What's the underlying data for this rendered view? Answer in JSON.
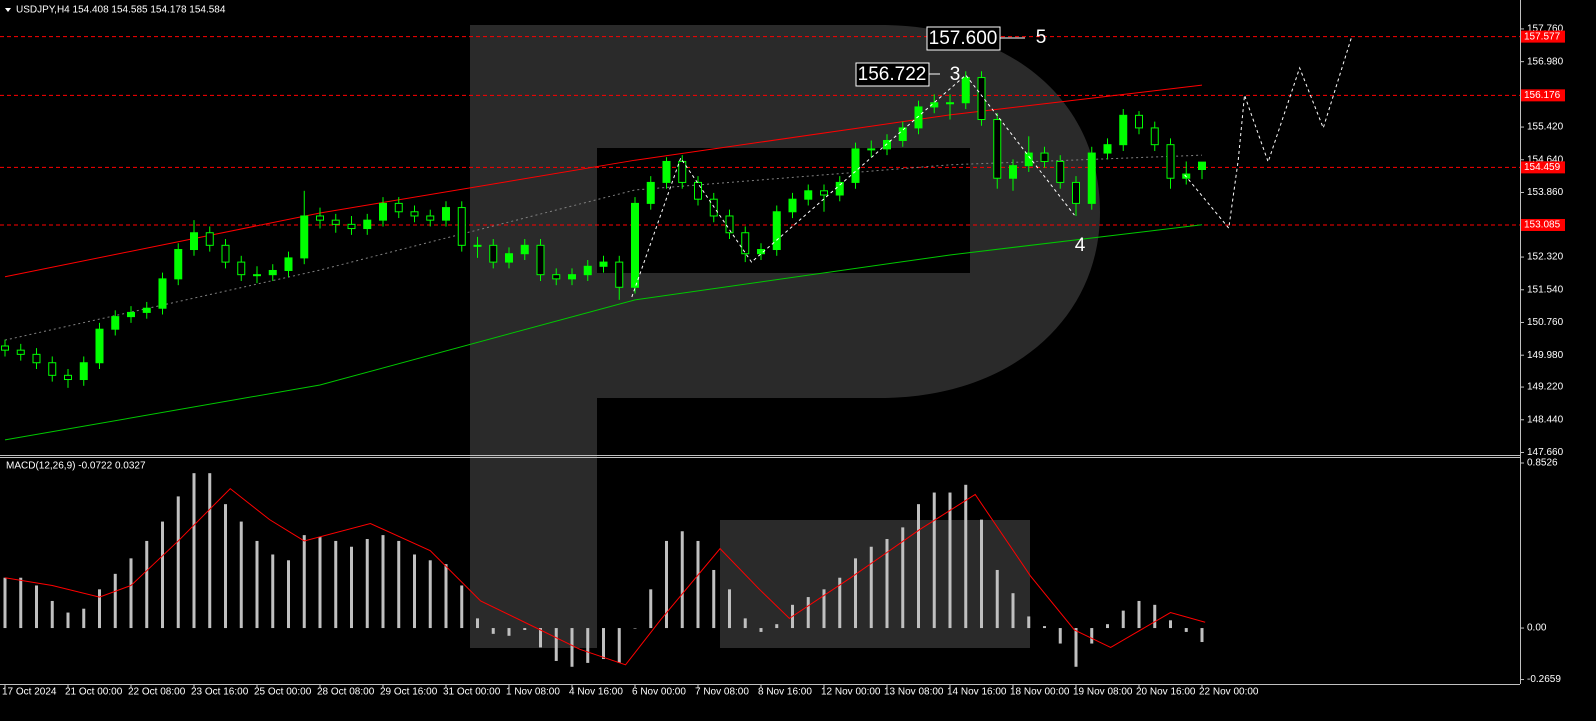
{
  "chart_data": {
    "type": "candlestick",
    "title": "USDJPY,H4  154.408 154.585 154.178 154.584",
    "categories": [
      "17 Oct 2024",
      null,
      null,
      null,
      "21 Oct 00:00",
      null,
      null,
      null,
      "22 Oct 08:00",
      null,
      null,
      null,
      "23 Oct 16:00",
      null,
      null,
      null,
      "25 Oct 00:00",
      null,
      null,
      null,
      "28 Oct 08:00",
      null,
      null,
      null,
      "29 Oct 16:00",
      null,
      null,
      null,
      "31 Oct 00:00",
      null,
      null,
      null,
      "1 Nov 08:00",
      null,
      null,
      null,
      "4 Nov 16:00",
      null,
      null,
      null,
      "6 Nov 00:00",
      null,
      null,
      null,
      "7 Nov 08:00",
      null,
      null,
      null,
      "8 Nov 16:00",
      null,
      null,
      null,
      "12 Nov 00:00",
      null,
      null,
      null,
      "13 Nov 08:00",
      null,
      null,
      null,
      "14 Nov 16:00",
      null,
      null,
      null,
      "18 Nov 00:00",
      null,
      null,
      null,
      "19 Nov 08:00",
      null,
      null,
      null,
      "20 Nov 16:00",
      null,
      null,
      null,
      "22 Nov 00:00"
    ],
    "candles": [
      [
        150.2,
        150.35,
        149.95,
        150.1
      ],
      [
        150.1,
        150.25,
        149.85,
        150.0
      ],
      [
        150.0,
        150.15,
        149.65,
        149.8
      ],
      [
        149.8,
        149.95,
        149.35,
        149.5
      ],
      [
        149.5,
        149.65,
        149.2,
        149.4
      ],
      [
        149.4,
        149.95,
        149.25,
        149.8
      ],
      [
        149.8,
        150.75,
        149.65,
        150.6
      ],
      [
        150.6,
        151.05,
        150.45,
        150.9
      ],
      [
        150.9,
        151.15,
        150.75,
        151.0
      ],
      [
        151.0,
        151.25,
        150.85,
        151.1
      ],
      [
        151.1,
        151.95,
        150.95,
        151.8
      ],
      [
        151.8,
        152.65,
        151.65,
        152.5
      ],
      [
        152.5,
        153.2,
        152.35,
        152.9
      ],
      [
        152.9,
        153.05,
        152.45,
        152.6
      ],
      [
        152.6,
        152.75,
        152.05,
        152.2
      ],
      [
        152.2,
        152.35,
        151.75,
        151.9
      ],
      [
        151.9,
        152.1,
        151.7,
        151.9
      ],
      [
        151.9,
        152.15,
        151.75,
        152.0
      ],
      [
        152.0,
        152.45,
        151.85,
        152.3
      ],
      [
        152.3,
        153.9,
        152.15,
        153.3
      ],
      [
        153.3,
        153.5,
        153.0,
        153.2
      ],
      [
        153.2,
        153.35,
        152.9,
        153.1
      ],
      [
        153.1,
        153.3,
        152.85,
        153.0
      ],
      [
        153.0,
        153.35,
        152.85,
        153.2
      ],
      [
        153.2,
        153.75,
        153.05,
        153.6
      ],
      [
        153.6,
        153.75,
        153.25,
        153.4
      ],
      [
        153.4,
        153.55,
        153.15,
        153.3
      ],
      [
        153.3,
        153.45,
        153.05,
        153.2
      ],
      [
        153.2,
        153.65,
        153.05,
        153.5
      ],
      [
        153.5,
        153.65,
        152.45,
        152.6
      ],
      [
        152.6,
        152.8,
        152.3,
        152.6
      ],
      [
        152.6,
        152.75,
        152.05,
        152.2
      ],
      [
        152.2,
        152.55,
        152.05,
        152.4
      ],
      [
        152.4,
        152.75,
        152.25,
        152.6
      ],
      [
        152.6,
        152.75,
        151.75,
        151.9
      ],
      [
        151.9,
        152.05,
        151.65,
        151.8
      ],
      [
        151.8,
        152.05,
        151.65,
        151.9
      ],
      [
        151.9,
        152.25,
        151.75,
        152.1
      ],
      [
        152.1,
        152.35,
        151.95,
        152.2
      ],
      [
        152.2,
        152.35,
        151.3,
        151.6
      ],
      [
        151.6,
        153.75,
        151.45,
        153.6
      ],
      [
        153.6,
        154.25,
        153.45,
        154.1
      ],
      [
        154.1,
        154.7,
        153.95,
        154.6
      ],
      [
        154.6,
        154.75,
        153.95,
        154.1
      ],
      [
        154.1,
        154.25,
        153.55,
        153.7
      ],
      [
        153.7,
        153.85,
        153.15,
        153.3
      ],
      [
        153.3,
        153.45,
        152.75,
        152.9
      ],
      [
        152.9,
        153.05,
        152.2,
        152.4
      ],
      [
        152.4,
        152.65,
        152.25,
        152.5
      ],
      [
        152.5,
        153.55,
        152.35,
        153.4
      ],
      [
        153.4,
        153.85,
        153.25,
        153.7
      ],
      [
        153.7,
        154.05,
        153.55,
        153.9
      ],
      [
        153.9,
        154.05,
        153.4,
        153.8
      ],
      [
        153.8,
        154.25,
        153.65,
        154.1
      ],
      [
        154.1,
        155.05,
        153.95,
        154.9
      ],
      [
        154.9,
        155.1,
        154.7,
        154.9
      ],
      [
        154.9,
        155.25,
        154.75,
        155.1
      ],
      [
        155.1,
        155.55,
        154.95,
        155.4
      ],
      [
        155.4,
        156.05,
        155.25,
        155.9
      ],
      [
        155.9,
        156.2,
        155.75,
        156.0
      ],
      [
        156.0,
        156.2,
        155.6,
        156.0
      ],
      [
        156.0,
        156.75,
        155.85,
        156.6
      ],
      [
        156.6,
        156.75,
        155.45,
        155.6
      ],
      [
        155.6,
        155.75,
        153.95,
        154.2
      ],
      [
        154.2,
        154.65,
        153.9,
        154.5
      ],
      [
        154.5,
        155.2,
        154.35,
        154.8
      ],
      [
        154.8,
        154.95,
        154.45,
        154.6
      ],
      [
        154.6,
        154.75,
        153.95,
        154.1
      ],
      [
        154.1,
        154.25,
        153.3,
        153.6
      ],
      [
        153.6,
        154.95,
        153.45,
        154.8
      ],
      [
        154.8,
        155.15,
        154.65,
        155.0
      ],
      [
        155.0,
        155.85,
        154.85,
        155.7
      ],
      [
        155.7,
        155.8,
        155.25,
        155.4
      ],
      [
        155.4,
        155.55,
        154.85,
        155.0
      ],
      [
        155.0,
        155.15,
        153.95,
        154.2
      ],
      [
        154.2,
        154.6,
        154.05,
        154.3
      ],
      [
        154.408,
        154.585,
        154.178,
        154.584
      ]
    ],
    "up_color": "#00ff00",
    "down_color": "#000000",
    "wick_color": "#00ff00",
    "ylim": [
      147.6,
      158.45
    ],
    "yticks": [
      {
        "value": 157.76,
        "label": "157.760"
      },
      {
        "value": 156.98,
        "label": "156.980"
      },
      {
        "value": 156.2,
        "label": "156.200"
      },
      {
        "value": 155.42,
        "label": "155.420"
      },
      {
        "value": 154.64,
        "label": "154.640"
      },
      {
        "value": 153.86,
        "label": "153.860"
      },
      {
        "value": 153.08,
        "label": "153.080"
      },
      {
        "value": 152.32,
        "label": "152.320"
      },
      {
        "value": 151.54,
        "label": "151.540"
      },
      {
        "value": 150.76,
        "label": "150.760"
      },
      {
        "value": 149.98,
        "label": "149.980"
      },
      {
        "value": 149.22,
        "label": "149.220"
      },
      {
        "value": 148.44,
        "label": "148.440"
      },
      {
        "value": 147.66,
        "label": "147.660"
      }
    ],
    "levels": [
      157.577,
      156.176,
      154.459,
      153.085
    ],
    "level_color": "#ff0000",
    "overlays": [
      {
        "color": "#ff0000",
        "dashed": false,
        "x": [
          0,
          20,
          40,
          60,
          76
        ],
        "values": [
          151.85,
          153.37,
          154.63,
          155.71,
          156.42
        ]
      },
      {
        "color": "#00c800",
        "dashed": false,
        "x": [
          0,
          20,
          40,
          60,
          76
        ],
        "values": [
          147.96,
          149.27,
          151.3,
          152.37,
          153.09
        ]
      },
      {
        "color": "#808080",
        "dashed": true,
        "x": [
          0,
          20,
          40,
          60,
          76
        ],
        "values": [
          150.34,
          152.01,
          153.92,
          154.52,
          154.75
        ]
      }
    ],
    "projections": [
      {
        "color": "#ffffff",
        "x": [
          39.8,
          42.9,
          47.4,
          61.0,
          67.9
        ],
        "values": [
          151.37,
          154.68,
          152.2,
          156.66,
          153.32
        ]
      },
      {
        "color": "#ffffff",
        "x": [
          74.9,
          77.7,
          78.3,
          78.7,
          80.2,
          82.2,
          83.7,
          85.5
        ],
        "values": [
          154.28,
          153.01,
          154.63,
          156.18,
          154.59,
          156.83,
          155.4,
          157.57
        ]
      }
    ],
    "annotations": {
      "wave5_price": "157.600",
      "wave5": "5",
      "wave3_price": "156.722",
      "wave3": "3",
      "wave4": "4"
    },
    "macd": {
      "title": "MACD(12,26,9) -0.0722 0.0327",
      "color": "#c0c0c0",
      "values": [
        0.26,
        0.26,
        0.22,
        0.14,
        0.08,
        0.1,
        0.2,
        0.28,
        0.36,
        0.45,
        0.55,
        0.68,
        0.8,
        0.8,
        0.64,
        0.55,
        0.45,
        0.38,
        0.35,
        0.48,
        0.47,
        0.45,
        0.42,
        0.46,
        0.48,
        0.45,
        0.38,
        0.35,
        0.33,
        0.22,
        0.05,
        -0.03,
        -0.04,
        -0.01,
        -0.1,
        -0.17,
        -0.2,
        -0.18,
        -0.16,
        -0.18,
        0.0,
        0.2,
        0.45,
        0.5,
        0.45,
        0.3,
        0.2,
        0.05,
        -0.02,
        0.02,
        0.12,
        0.16,
        0.2,
        0.26,
        0.36,
        0.42,
        0.46,
        0.52,
        0.64,
        0.7,
        0.7,
        0.74,
        0.56,
        0.3,
        0.18,
        0.06,
        0.01,
        -0.08,
        -0.2,
        -0.08,
        0.02,
        0.09,
        0.14,
        0.12,
        0.04,
        -0.02,
        -0.0722
      ],
      "signal": {
        "color": "#ff0000",
        "x": [
          0,
          3,
          6,
          8,
          11,
          14.3,
          16.8,
          19,
          23.2,
          27,
          30.2,
          34,
          36.5,
          39.4,
          41.6,
          45.4,
          47.9,
          49.8,
          53.7,
          58.1,
          61.6,
          65.1,
          67.9,
          70.2,
          74,
          76.2
        ],
        "values": [
          0.26,
          0.22,
          0.16,
          0.22,
          0.45,
          0.72,
          0.56,
          0.45,
          0.54,
          0.4,
          0.14,
          -0.01,
          -0.11,
          -0.19,
          0.04,
          0.41,
          0.2,
          0.05,
          0.26,
          0.51,
          0.69,
          0.27,
          -0.01,
          -0.1,
          0.08,
          0.03
        ]
      },
      "ylim": [
        -0.289,
        0.8784
      ],
      "yticks": [
        {
          "value": 0.8526,
          "label": "0.8526"
        },
        {
          "value": 0,
          "label": "0.00"
        },
        {
          "value": -0.2659,
          "label": "-0.2659"
        }
      ]
    }
  }
}
